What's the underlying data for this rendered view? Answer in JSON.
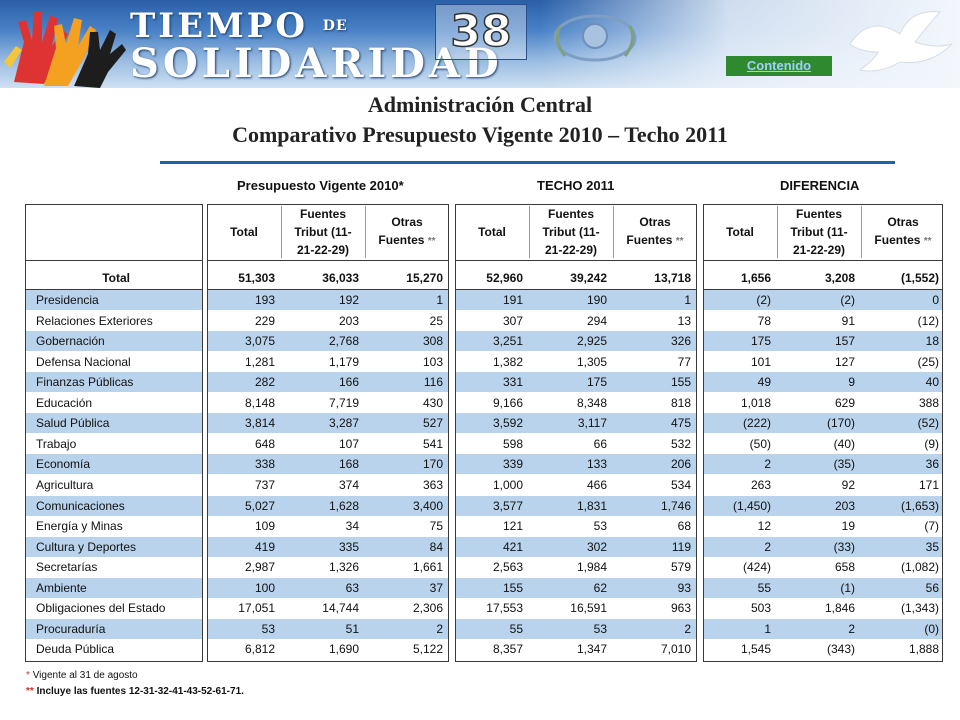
{
  "banner": {
    "logo_line1": "TIEMPO",
    "logo_de": "DE",
    "logo_line2": "SOLIDARIDAD",
    "page_number": "38",
    "contenido_link": "Contenido"
  },
  "title_line1": "Administración Central",
  "title_line2": "Comparativo Presupuesto Vigente 2010 – Techo 2011",
  "groups": [
    {
      "label": "Presupuesto Vigente 2010*"
    },
    {
      "label": "TECHO 2011"
    },
    {
      "label": "DIFERENCIA"
    }
  ],
  "col_headers": {
    "total": "Total",
    "fuentes_l1": "Fuentes",
    "fuentes_l2": "Tribut (11-",
    "fuentes_l3": "21-22-29)",
    "otras_l1": "Otras",
    "otras_l2": "Fuentes",
    "otras_ast": "**"
  },
  "total_row": {
    "label": "Total",
    "values": [
      "51,303",
      "36,033",
      "15,270",
      "52,960",
      "39,242",
      "13,718",
      "1,656",
      "3,208",
      "(1,552)"
    ]
  },
  "rows": [
    {
      "label": "Presidencia",
      "values": [
        "193",
        "192",
        "1",
        "191",
        "190",
        "1",
        "(2)",
        "(2)",
        "0"
      ]
    },
    {
      "label": "Relaciones Exteriores",
      "values": [
        "229",
        "203",
        "25",
        "307",
        "294",
        "13",
        "78",
        "91",
        "(12)"
      ]
    },
    {
      "label": "Gobernación",
      "values": [
        "3,075",
        "2,768",
        "308",
        "3,251",
        "2,925",
        "326",
        "175",
        "157",
        "18"
      ]
    },
    {
      "label": "Defensa Nacional",
      "values": [
        "1,281",
        "1,179",
        "103",
        "1,382",
        "1,305",
        "77",
        "101",
        "127",
        "(25)"
      ]
    },
    {
      "label": "Finanzas Públicas",
      "values": [
        "282",
        "166",
        "116",
        "331",
        "175",
        "155",
        "49",
        "9",
        "40"
      ]
    },
    {
      "label": "Educación",
      "values": [
        "8,148",
        "7,719",
        "430",
        "9,166",
        "8,348",
        "818",
        "1,018",
        "629",
        "388"
      ]
    },
    {
      "label": "Salud Pública",
      "values": [
        "3,814",
        "3,287",
        "527",
        "3,592",
        "3,117",
        "475",
        "(222)",
        "(170)",
        "(52)"
      ]
    },
    {
      "label": "Trabajo",
      "values": [
        "648",
        "107",
        "541",
        "598",
        "66",
        "532",
        "(50)",
        "(40)",
        "(9)"
      ]
    },
    {
      "label": "Economía",
      "values": [
        "338",
        "168",
        "170",
        "339",
        "133",
        "206",
        "2",
        "(35)",
        "36"
      ]
    },
    {
      "label": "Agricultura",
      "values": [
        "737",
        "374",
        "363",
        "1,000",
        "466",
        "534",
        "263",
        "92",
        "171"
      ]
    },
    {
      "label": "Comunicaciones",
      "values": [
        "5,027",
        "1,628",
        "3,400",
        "3,577",
        "1,831",
        "1,746",
        "(1,450)",
        "203",
        "(1,653)"
      ]
    },
    {
      "label": "Energía y Minas",
      "values": [
        "109",
        "34",
        "75",
        "121",
        "53",
        "68",
        "12",
        "19",
        "(7)"
      ]
    },
    {
      "label": "Cultura y Deportes",
      "values": [
        "419",
        "335",
        "84",
        "421",
        "302",
        "119",
        "2",
        "(33)",
        "35"
      ]
    },
    {
      "label": "Secretarías",
      "values": [
        "2,987",
        "1,326",
        "1,661",
        "2,563",
        "1,984",
        "579",
        "(424)",
        "658",
        "(1,082)"
      ]
    },
    {
      "label": "Ambiente",
      "values": [
        "100",
        "63",
        "37",
        "155",
        "62",
        "93",
        "55",
        "(1)",
        "56"
      ]
    },
    {
      "label": "Obligaciones del Estado",
      "values": [
        "17,051",
        "14,744",
        "2,306",
        "17,553",
        "16,591",
        "963",
        "503",
        "1,846",
        "(1,343)"
      ]
    },
    {
      "label": "Procuraduría",
      "values": [
        "53",
        "51",
        "2",
        "55",
        "53",
        "2",
        "1",
        "2",
        "(0)"
      ]
    },
    {
      "label": "Deuda Pública",
      "values": [
        "6,812",
        "1,690",
        "5,122",
        "8,357",
        "1,347",
        "7,010",
        "1,545",
        "(343)",
        "1,888"
      ]
    }
  ],
  "footnotes": [
    {
      "ast": "*",
      "text": "Vigente al 31 de agosto"
    },
    {
      "ast": "**",
      "text": "Incluye las fuentes 12-31-32-41-43-52-61-71."
    }
  ],
  "colors": {
    "band": "#b9d3ec",
    "rule": "#1f62b0",
    "contenido_bg": "#2f8a2f"
  }
}
